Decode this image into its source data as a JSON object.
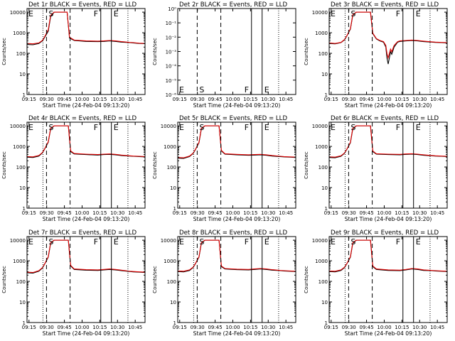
{
  "figure": {
    "shared": {
      "xlabel": "Start Time (24-Feb-04 09:13:20)",
      "ylabel": "Counts/sec",
      "x_ticks": [
        "09:15",
        "09:30",
        "09:45",
        "10:00",
        "10:15",
        "10:30",
        "10:45"
      ],
      "y_ticks": [
        "1",
        "10",
        "100",
        "1000",
        "10000"
      ],
      "y_ticks_empty": [
        "10⁰",
        "10⁻¹",
        "10⁻²",
        "10⁻³",
        "10⁻⁴",
        "10⁻⁵",
        "10⁻⁶"
      ],
      "interval_letters": [
        "E",
        "S",
        "F",
        "E"
      ],
      "colors": {
        "events": "#000000",
        "lld": "#e00000",
        "axes": "#000000",
        "background": "#ffffff"
      }
    }
  },
  "chart_data": [
    {
      "type": "line",
      "title": "Det 1r BLACK = Events, RED = LLD",
      "xlabel": "Start Time (24-Feb-04 09:13:20)",
      "ylabel": "Counts/sec",
      "x_unit": "minutes after 09:13:20",
      "y_scale": "log",
      "ylim": [
        1,
        15000
      ],
      "x": [
        0,
        5,
        10,
        13,
        15,
        18,
        20,
        23,
        26,
        30,
        33,
        34,
        36,
        40,
        50,
        60,
        65,
        70,
        75,
        80,
        87,
        90,
        95,
        100
      ],
      "series": [
        {
          "name": "Events",
          "color": "#000000",
          "values": [
            270,
            260,
            300,
            400,
            600,
            1200,
            6000,
            10000,
            10000,
            10000,
            10000,
            10000,
            550,
            420,
            380,
            370,
            380,
            400,
            380,
            350,
            330,
            320,
            300,
            295
          ]
        },
        {
          "name": "LLD",
          "color": "#e00000",
          "values": [
            300,
            290,
            320,
            420,
            650,
            1400,
            7000,
            10000,
            10000,
            10000,
            10000,
            10000,
            600,
            440,
            400,
            390,
            400,
            420,
            400,
            370,
            340,
            330,
            310,
            300
          ]
        }
      ],
      "vlines": {
        "dotted": [
          13.5,
          85.5
        ],
        "dashed": [
          16.5,
          36.5
        ],
        "solid": [
          62.5,
          71.5
        ]
      },
      "interval_letters": [
        "E",
        "S",
        "F",
        "E"
      ]
    },
    {
      "type": "line",
      "title": "Det 2r BLACK = Events, RED = LLD",
      "xlabel": "Start Time (24-Feb-04 09:13:20)",
      "ylabel": "Counts/sec",
      "x_unit": "minutes after 09:13:20",
      "y_scale": "log",
      "ylim": [
        1e-06,
        1
      ],
      "series": [],
      "vlines": {
        "dotted": [
          85.5
        ],
        "dashed": [
          16.5,
          36.5
        ],
        "solid": [
          62.5,
          71.5
        ]
      },
      "interval_letters": [
        "E",
        "S",
        "F",
        "E"
      ]
    },
    {
      "type": "line",
      "title": "Det 3r BLACK = Events, RED = LLD",
      "xlabel": "Start Time (24-Feb-04 09:13:20)",
      "ylabel": "Counts/sec",
      "x_unit": "minutes after 09:13:20",
      "y_scale": "log",
      "ylim": [
        1,
        15000
      ],
      "x": [
        0,
        5,
        10,
        13,
        15,
        18,
        20,
        23,
        26,
        30,
        33,
        35,
        37,
        40,
        43,
        46,
        48,
        49,
        50,
        51,
        52,
        53,
        55,
        58,
        60,
        65,
        70,
        75,
        80,
        87,
        90,
        95,
        100
      ],
      "series": [
        {
          "name": "Events",
          "color": "#000000",
          "values": [
            300,
            290,
            330,
            450,
            700,
            1500,
            7000,
            10000,
            10000,
            10000,
            10000,
            10000,
            900,
            500,
            400,
            350,
            200,
            60,
            30,
            60,
            120,
            90,
            200,
            350,
            380,
            400,
            420,
            400,
            370,
            350,
            340,
            330,
            320
          ]
        },
        {
          "name": "LLD",
          "color": "#e00000",
          "values": [
            320,
            300,
            340,
            470,
            720,
            1600,
            7500,
            10000,
            10000,
            10000,
            10000,
            10000,
            950,
            520,
            420,
            370,
            240,
            100,
            60,
            100,
            160,
            120,
            240,
            370,
            400,
            420,
            440,
            420,
            390,
            360,
            350,
            340,
            330
          ]
        }
      ],
      "vlines": {
        "dotted": [
          13.5,
          85.5
        ],
        "dashed": [
          16.5,
          36.5
        ],
        "solid": [
          62.5,
          71.5
        ]
      },
      "interval_letters": [
        "E",
        "S",
        "F",
        "E"
      ]
    },
    {
      "type": "line",
      "title": "Det 4r BLACK = Events, RED = LLD",
      "xlabel": "Start Time (24-Feb-04 09:13:20)",
      "ylabel": "Counts/sec",
      "x_unit": "minutes after 09:13:20",
      "y_scale": "log",
      "ylim": [
        1,
        15000
      ],
      "x": [
        0,
        5,
        10,
        13,
        15,
        18,
        20,
        23,
        26,
        30,
        33,
        35,
        37,
        40,
        50,
        60,
        65,
        70,
        75,
        80,
        87,
        90,
        95,
        100
      ],
      "series": [
        {
          "name": "Events",
          "color": "#000000",
          "values": [
            300,
            290,
            340,
            480,
            750,
            1600,
            7000,
            10000,
            10000,
            10000,
            10000,
            10000,
            560,
            430,
            400,
            380,
            400,
            410,
            390,
            360,
            340,
            330,
            320,
            310
          ]
        },
        {
          "name": "LLD",
          "color": "#e00000",
          "values": [
            320,
            310,
            360,
            500,
            780,
            1700,
            7600,
            10000,
            10000,
            10000,
            10000,
            10000,
            600,
            450,
            420,
            400,
            420,
            430,
            410,
            380,
            350,
            340,
            330,
            320
          ]
        }
      ],
      "vlines": {
        "dotted": [
          13.5,
          85.5
        ],
        "dashed": [
          16.5,
          36.5
        ],
        "solid": [
          62.5,
          71.5
        ]
      },
      "interval_letters": [
        "E",
        "S",
        "F",
        "E"
      ]
    },
    {
      "type": "line",
      "title": "Det 5r BLACK = Events, RED = LLD",
      "xlabel": "Start Time (24-Feb-04 09:13:20)",
      "ylabel": "Counts/sec",
      "x_unit": "minutes after 09:13:20",
      "y_scale": "log",
      "ylim": [
        1,
        15000
      ],
      "x": [
        0,
        5,
        10,
        13,
        15,
        18,
        20,
        23,
        26,
        30,
        33,
        35,
        37,
        40,
        50,
        60,
        65,
        70,
        75,
        80,
        87,
        90,
        95,
        100
      ],
      "series": [
        {
          "name": "Events",
          "color": "#000000",
          "values": [
            270,
            260,
            320,
            450,
            700,
            1500,
            7000,
            10000,
            10000,
            10000,
            10000,
            10000,
            600,
            420,
            390,
            370,
            380,
            390,
            370,
            340,
            320,
            310,
            300,
            290
          ]
        },
        {
          "name": "LLD",
          "color": "#e00000",
          "values": [
            290,
            280,
            340,
            470,
            720,
            1600,
            7500,
            10000,
            10000,
            10000,
            10000,
            10000,
            640,
            440,
            410,
            390,
            400,
            410,
            390,
            360,
            330,
            320,
            310,
            300
          ]
        }
      ],
      "vlines": {
        "dotted": [
          13.5,
          85.5
        ],
        "dashed": [
          16.5,
          36.5
        ],
        "solid": [
          62.5,
          71.5
        ]
      },
      "interval_letters": [
        "E",
        "S",
        "F",
        "E"
      ]
    },
    {
      "type": "line",
      "title": "Det 6r BLACK = Events, RED = LLD",
      "xlabel": "Start Time (24-Feb-04 09:13:20)",
      "ylabel": "Counts/sec",
      "x_unit": "minutes after 09:13:20",
      "y_scale": "log",
      "ylim": [
        1,
        15000
      ],
      "x": [
        0,
        5,
        10,
        13,
        15,
        18,
        20,
        23,
        26,
        30,
        33,
        35,
        37,
        40,
        50,
        60,
        65,
        70,
        75,
        80,
        87,
        90,
        95,
        100
      ],
      "series": [
        {
          "name": "Events",
          "color": "#000000",
          "values": [
            290,
            280,
            330,
            460,
            720,
            1500,
            7000,
            10000,
            10000,
            10000,
            10000,
            10000,
            560,
            420,
            400,
            390,
            410,
            420,
            400,
            370,
            350,
            340,
            330,
            320
          ]
        },
        {
          "name": "LLD",
          "color": "#e00000",
          "values": [
            310,
            300,
            350,
            480,
            740,
            1600,
            7600,
            10000,
            10000,
            10000,
            10000,
            10000,
            600,
            440,
            420,
            410,
            430,
            440,
            420,
            390,
            360,
            350,
            340,
            330
          ]
        }
      ],
      "vlines": {
        "dotted": [
          13.5,
          85.5
        ],
        "dashed": [
          16.5,
          36.5
        ],
        "solid": [
          62.5,
          71.5
        ]
      },
      "interval_letters": [
        "E",
        "S",
        "F",
        "E"
      ]
    },
    {
      "type": "line",
      "title": "Det 7r BLACK = Events, RED = LLD",
      "xlabel": "Start Time (24-Feb-04 09:13:20)",
      "ylabel": "Counts/sec",
      "x_unit": "minutes after 09:13:20",
      "y_scale": "log",
      "ylim": [
        1,
        15000
      ],
      "x": [
        0,
        5,
        10,
        13,
        15,
        18,
        20,
        23,
        26,
        30,
        33,
        35,
        37,
        40,
        50,
        60,
        65,
        70,
        75,
        80,
        87,
        90,
        95,
        100
      ],
      "series": [
        {
          "name": "Events",
          "color": "#000000",
          "values": [
            260,
            250,
            310,
            440,
            700,
            1500,
            7000,
            10000,
            10000,
            10000,
            10000,
            10000,
            560,
            380,
            350,
            340,
            360,
            380,
            360,
            330,
            300,
            290,
            280,
            270
          ]
        },
        {
          "name": "LLD",
          "color": "#e00000",
          "values": [
            280,
            270,
            330,
            460,
            720,
            1600,
            7500,
            10000,
            10000,
            10000,
            10000,
            10000,
            600,
            400,
            370,
            360,
            380,
            400,
            380,
            350,
            310,
            300,
            290,
            280
          ]
        }
      ],
      "vlines": {
        "dotted": [
          13.5,
          85.5
        ],
        "dashed": [
          16.5,
          36.5
        ],
        "solid": [
          62.5,
          71.5
        ]
      },
      "interval_letters": [
        "E",
        "S",
        "F",
        "E"
      ]
    },
    {
      "type": "line",
      "title": "Det 8r BLACK = Events, RED = LLD",
      "xlabel": "Start Time (24-Feb-04 09:13:20)",
      "ylabel": "Counts/sec",
      "x_unit": "minutes after 09:13:20",
      "y_scale": "log",
      "ylim": [
        1,
        15000
      ],
      "x": [
        0,
        5,
        10,
        13,
        15,
        18,
        20,
        23,
        26,
        30,
        33,
        35,
        37,
        40,
        50,
        60,
        65,
        70,
        75,
        80,
        87,
        90,
        95,
        100
      ],
      "series": [
        {
          "name": "Events",
          "color": "#000000",
          "values": [
            300,
            290,
            340,
            470,
            720,
            1500,
            7000,
            10000,
            10000,
            10000,
            10000,
            10000,
            520,
            400,
            370,
            360,
            380,
            400,
            380,
            350,
            330,
            320,
            310,
            300
          ]
        },
        {
          "name": "LLD",
          "color": "#e00000",
          "values": [
            320,
            310,
            360,
            490,
            740,
            1600,
            7500,
            10000,
            10000,
            10000,
            10000,
            10000,
            560,
            420,
            390,
            380,
            400,
            420,
            400,
            370,
            340,
            330,
            320,
            310
          ]
        }
      ],
      "vlines": {
        "dotted": [
          13.5,
          85.5
        ],
        "dashed": [
          16.5,
          36.5
        ],
        "solid": [
          62.5,
          71.5
        ]
      },
      "interval_letters": [
        "E",
        "S",
        "F",
        "E"
      ]
    },
    {
      "type": "line",
      "title": "Det 9r BLACK = Events, RED = LLD",
      "xlabel": "Start Time (24-Feb-04 09:13:20)",
      "ylabel": "Counts/sec",
      "x_unit": "minutes after 09:13:20",
      "y_scale": "log",
      "ylim": [
        1,
        15000
      ],
      "x": [
        0,
        5,
        10,
        13,
        15,
        18,
        20,
        23,
        26,
        30,
        33,
        35,
        37,
        40,
        50,
        60,
        65,
        70,
        75,
        80,
        87,
        90,
        95,
        100
      ],
      "series": [
        {
          "name": "Events",
          "color": "#000000",
          "values": [
            300,
            290,
            340,
            470,
            720,
            1500,
            7000,
            10000,
            10000,
            10000,
            10000,
            10000,
            520,
            380,
            340,
            330,
            360,
            400,
            380,
            340,
            330,
            320,
            310,
            300
          ]
        },
        {
          "name": "LLD",
          "color": "#e00000",
          "values": [
            320,
            310,
            360,
            490,
            740,
            1600,
            7500,
            10000,
            10000,
            10000,
            10000,
            10000,
            560,
            400,
            360,
            350,
            380,
            420,
            400,
            360,
            340,
            330,
            320,
            310
          ]
        }
      ],
      "vlines": {
        "dotted": [
          13.5,
          85.5
        ],
        "dashed": [
          16.5,
          36.5
        ],
        "solid": [
          62.5,
          71.5
        ]
      },
      "interval_letters": [
        "E",
        "S",
        "F",
        "E"
      ]
    }
  ]
}
